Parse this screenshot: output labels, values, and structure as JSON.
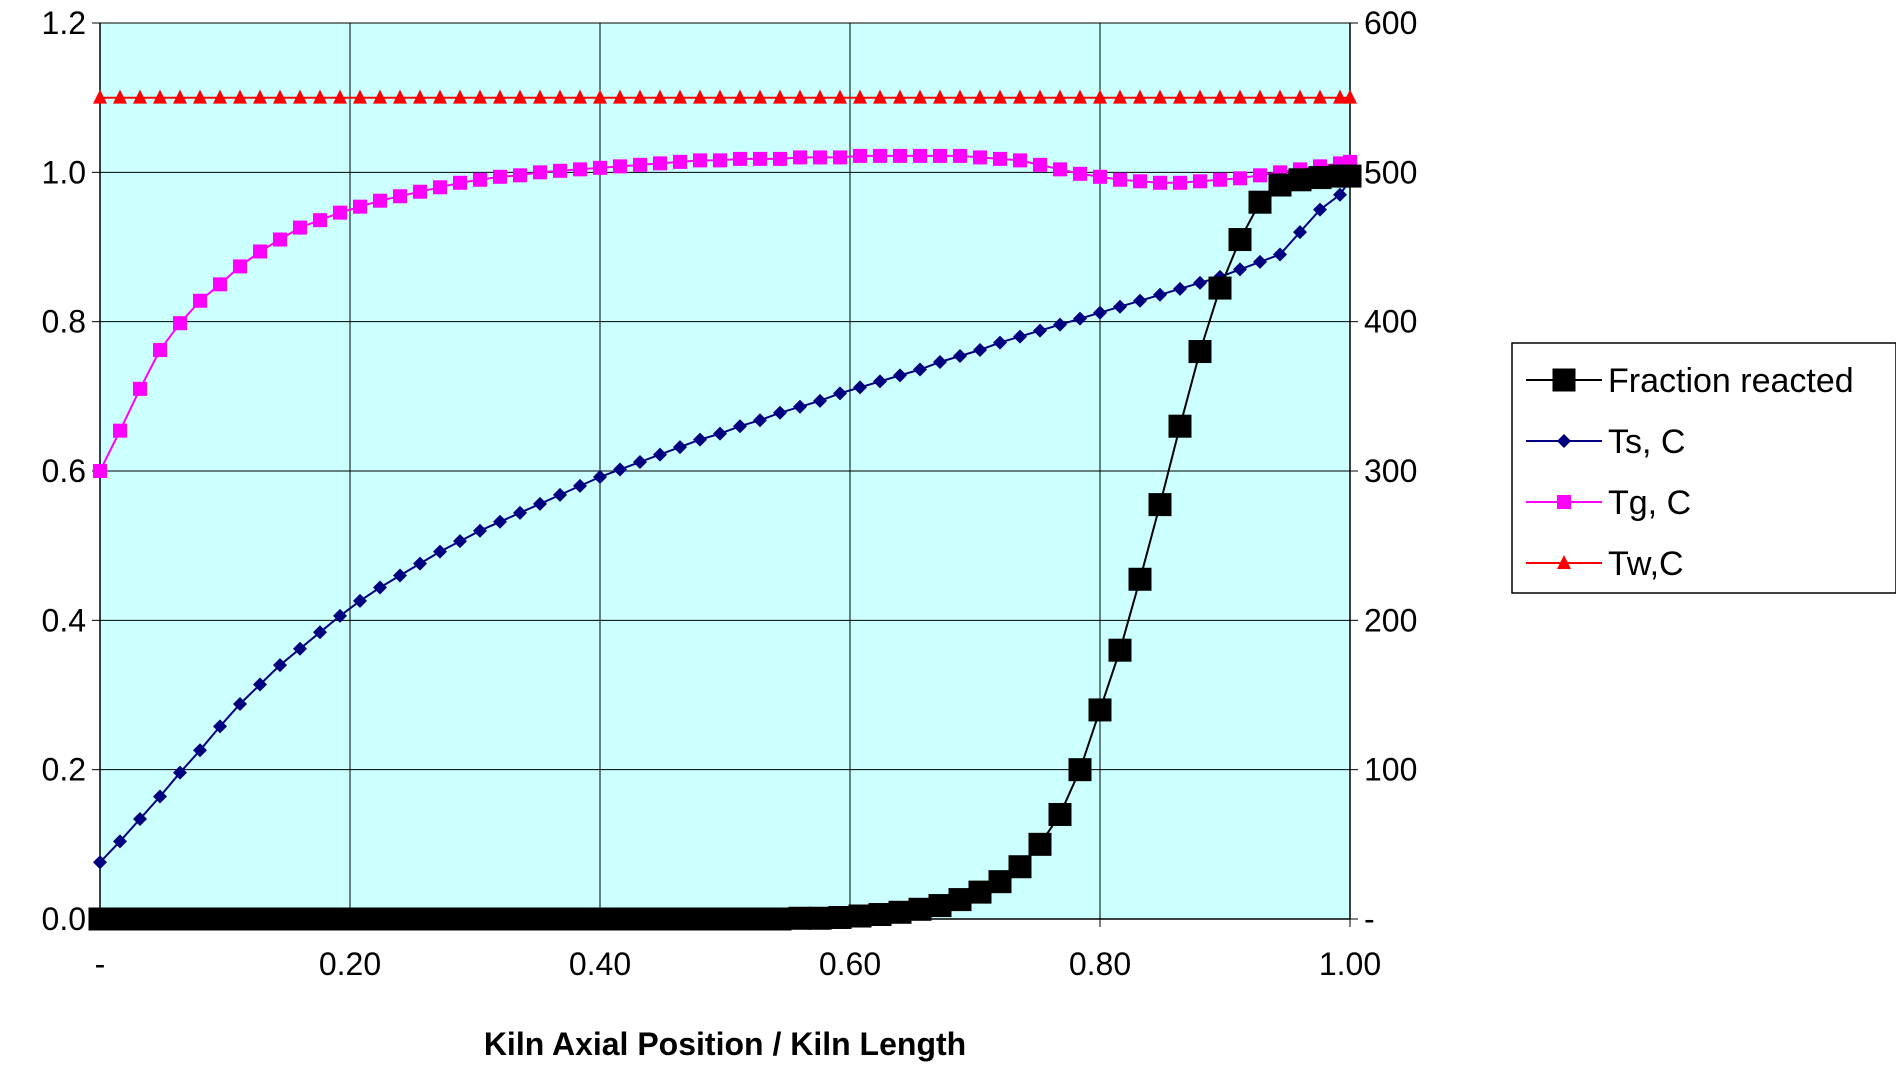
{
  "chart_data": {
    "type": "line",
    "xlabel": "Kiln Axial Position / Kiln Length",
    "xlim": [
      0,
      1
    ],
    "ylim_left": [
      0,
      1.2
    ],
    "ylim_right": [
      0,
      600
    ],
    "grid": true,
    "legend_position": "right",
    "plot_background": "#ccffff",
    "x_ticks": [
      {
        "value": 0,
        "label": "-"
      },
      {
        "value": 0.2,
        "label": "0.20"
      },
      {
        "value": 0.4,
        "label": "0.40"
      },
      {
        "value": 0.6,
        "label": "0.60"
      },
      {
        "value": 0.8,
        "label": "0.80"
      },
      {
        "value": 1.0,
        "label": "1.00"
      }
    ],
    "y_left_ticks": [
      {
        "value": 0,
        "label": "0.0"
      },
      {
        "value": 0.2,
        "label": "0.2"
      },
      {
        "value": 0.4,
        "label": "0.4"
      },
      {
        "value": 0.6,
        "label": "0.6"
      },
      {
        "value": 0.8,
        "label": "0.8"
      },
      {
        "value": 1.0,
        "label": "1.0"
      },
      {
        "value": 1.2,
        "label": "1.2"
      }
    ],
    "y_right_ticks": [
      {
        "value": 0,
        "label": "-"
      },
      {
        "value": 100,
        "label": "100"
      },
      {
        "value": 200,
        "label": "200"
      },
      {
        "value": 300,
        "label": "300"
      },
      {
        "value": 400,
        "label": "400"
      },
      {
        "value": 500,
        "label": "500"
      },
      {
        "value": 600,
        "label": "600"
      }
    ],
    "series": [
      {
        "name": "Fraction reacted",
        "axis": "left",
        "color": "#000000",
        "marker": "square-large",
        "x": [
          0.0,
          0.016,
          0.032,
          0.048,
          0.064,
          0.08,
          0.096,
          0.112,
          0.128,
          0.144,
          0.16,
          0.176,
          0.192,
          0.208,
          0.224,
          0.24,
          0.256,
          0.272,
          0.288,
          0.304,
          0.32,
          0.336,
          0.352,
          0.368,
          0.384,
          0.4,
          0.416,
          0.432,
          0.448,
          0.464,
          0.48,
          0.496,
          0.512,
          0.528,
          0.544,
          0.56,
          0.576,
          0.592,
          0.608,
          0.624,
          0.64,
          0.656,
          0.672,
          0.688,
          0.704,
          0.72,
          0.736,
          0.752,
          0.768,
          0.784,
          0.8,
          0.816,
          0.832,
          0.848,
          0.864,
          0.88,
          0.896,
          0.912,
          0.928,
          0.944,
          0.96,
          0.976,
          0.992,
          1.0
        ],
        "y": [
          0,
          0,
          0,
          0,
          0,
          0,
          0,
          0,
          0,
          0,
          0,
          0,
          0,
          0,
          0,
          0,
          0,
          0,
          0,
          0,
          0,
          0,
          0,
          0,
          0,
          0,
          0,
          0,
          0,
          0,
          0,
          0,
          0,
          0,
          0,
          0.001,
          0.001,
          0.002,
          0.004,
          0.006,
          0.009,
          0.013,
          0.018,
          0.026,
          0.036,
          0.05,
          0.07,
          0.1,
          0.14,
          0.2,
          0.28,
          0.36,
          0.455,
          0.555,
          0.66,
          0.76,
          0.845,
          0.91,
          0.96,
          0.983,
          0.99,
          0.993,
          0.995,
          0.995
        ]
      },
      {
        "name": "Ts, C",
        "axis": "right",
        "color": "#000080",
        "marker": "diamond",
        "x": [
          0.0,
          0.016,
          0.032,
          0.048,
          0.064,
          0.08,
          0.096,
          0.112,
          0.128,
          0.144,
          0.16,
          0.176,
          0.192,
          0.208,
          0.224,
          0.24,
          0.256,
          0.272,
          0.288,
          0.304,
          0.32,
          0.336,
          0.352,
          0.368,
          0.384,
          0.4,
          0.416,
          0.432,
          0.448,
          0.464,
          0.48,
          0.496,
          0.512,
          0.528,
          0.544,
          0.56,
          0.576,
          0.592,
          0.608,
          0.624,
          0.64,
          0.656,
          0.672,
          0.688,
          0.704,
          0.72,
          0.736,
          0.752,
          0.768,
          0.784,
          0.8,
          0.816,
          0.832,
          0.848,
          0.864,
          0.88,
          0.896,
          0.912,
          0.928,
          0.944,
          0.96,
          0.976,
          0.992,
          1.0
        ],
        "y": [
          38,
          52,
          67,
          82,
          98,
          113,
          129,
          144,
          157,
          170,
          181,
          192,
          203,
          213,
          222,
          230,
          238,
          246,
          253,
          260,
          266,
          272,
          278,
          284,
          290,
          296,
          301,
          306,
          311,
          316,
          321,
          325,
          330,
          334,
          339,
          343,
          347,
          352,
          356,
          360,
          364,
          368,
          373,
          377,
          381,
          386,
          390,
          394,
          398,
          402,
          406,
          410,
          414,
          418,
          422,
          426,
          430,
          435,
          440,
          445,
          460,
          475,
          485,
          495
        ]
      },
      {
        "name": "Tg, C",
        "axis": "right",
        "color": "#ff00ff",
        "marker": "square",
        "x": [
          0.0,
          0.016,
          0.032,
          0.048,
          0.064,
          0.08,
          0.096,
          0.112,
          0.128,
          0.144,
          0.16,
          0.176,
          0.192,
          0.208,
          0.224,
          0.24,
          0.256,
          0.272,
          0.288,
          0.304,
          0.32,
          0.336,
          0.352,
          0.368,
          0.384,
          0.4,
          0.416,
          0.432,
          0.448,
          0.464,
          0.48,
          0.496,
          0.512,
          0.528,
          0.544,
          0.56,
          0.576,
          0.592,
          0.608,
          0.624,
          0.64,
          0.656,
          0.672,
          0.688,
          0.704,
          0.72,
          0.736,
          0.752,
          0.768,
          0.784,
          0.8,
          0.816,
          0.832,
          0.848,
          0.864,
          0.88,
          0.896,
          0.912,
          0.928,
          0.944,
          0.96,
          0.976,
          0.992,
          1.0
        ],
        "y": [
          300,
          327,
          355,
          381,
          399,
          414,
          425,
          437,
          447,
          455,
          463,
          468,
          473,
          477,
          481,
          484,
          487,
          490,
          493,
          495,
          497,
          498,
          500,
          501,
          502,
          503,
          504,
          505,
          506,
          507,
          508,
          508,
          509,
          509,
          509,
          510,
          510,
          510,
          511,
          511,
          511,
          511,
          511,
          511,
          510,
          509,
          508,
          505,
          502,
          499,
          497,
          495,
          494,
          493,
          493,
          494,
          495,
          496,
          498,
          500,
          502,
          504,
          506,
          507
        ]
      },
      {
        "name": "Tw,C",
        "axis": "right",
        "color": "#ff0000",
        "marker": "triangle",
        "x": [
          0.0,
          0.016,
          0.032,
          0.048,
          0.064,
          0.08,
          0.096,
          0.112,
          0.128,
          0.144,
          0.16,
          0.176,
          0.192,
          0.208,
          0.224,
          0.24,
          0.256,
          0.272,
          0.288,
          0.304,
          0.32,
          0.336,
          0.352,
          0.368,
          0.384,
          0.4,
          0.416,
          0.432,
          0.448,
          0.464,
          0.48,
          0.496,
          0.512,
          0.528,
          0.544,
          0.56,
          0.576,
          0.592,
          0.608,
          0.624,
          0.64,
          0.656,
          0.672,
          0.688,
          0.704,
          0.72,
          0.736,
          0.752,
          0.768,
          0.784,
          0.8,
          0.816,
          0.832,
          0.848,
          0.864,
          0.88,
          0.896,
          0.912,
          0.928,
          0.944,
          0.96,
          0.976,
          0.992,
          1.0
        ],
        "y": [
          550,
          550,
          550,
          550,
          550,
          550,
          550,
          550,
          550,
          550,
          550,
          550,
          550,
          550,
          550,
          550,
          550,
          550,
          550,
          550,
          550,
          550,
          550,
          550,
          550,
          550,
          550,
          550,
          550,
          550,
          550,
          550,
          550,
          550,
          550,
          550,
          550,
          550,
          550,
          550,
          550,
          550,
          550,
          550,
          550,
          550,
          550,
          550,
          550,
          550,
          550,
          550,
          550,
          550,
          550,
          550,
          550,
          550,
          550,
          550,
          550,
          550,
          550,
          550
        ]
      }
    ]
  }
}
